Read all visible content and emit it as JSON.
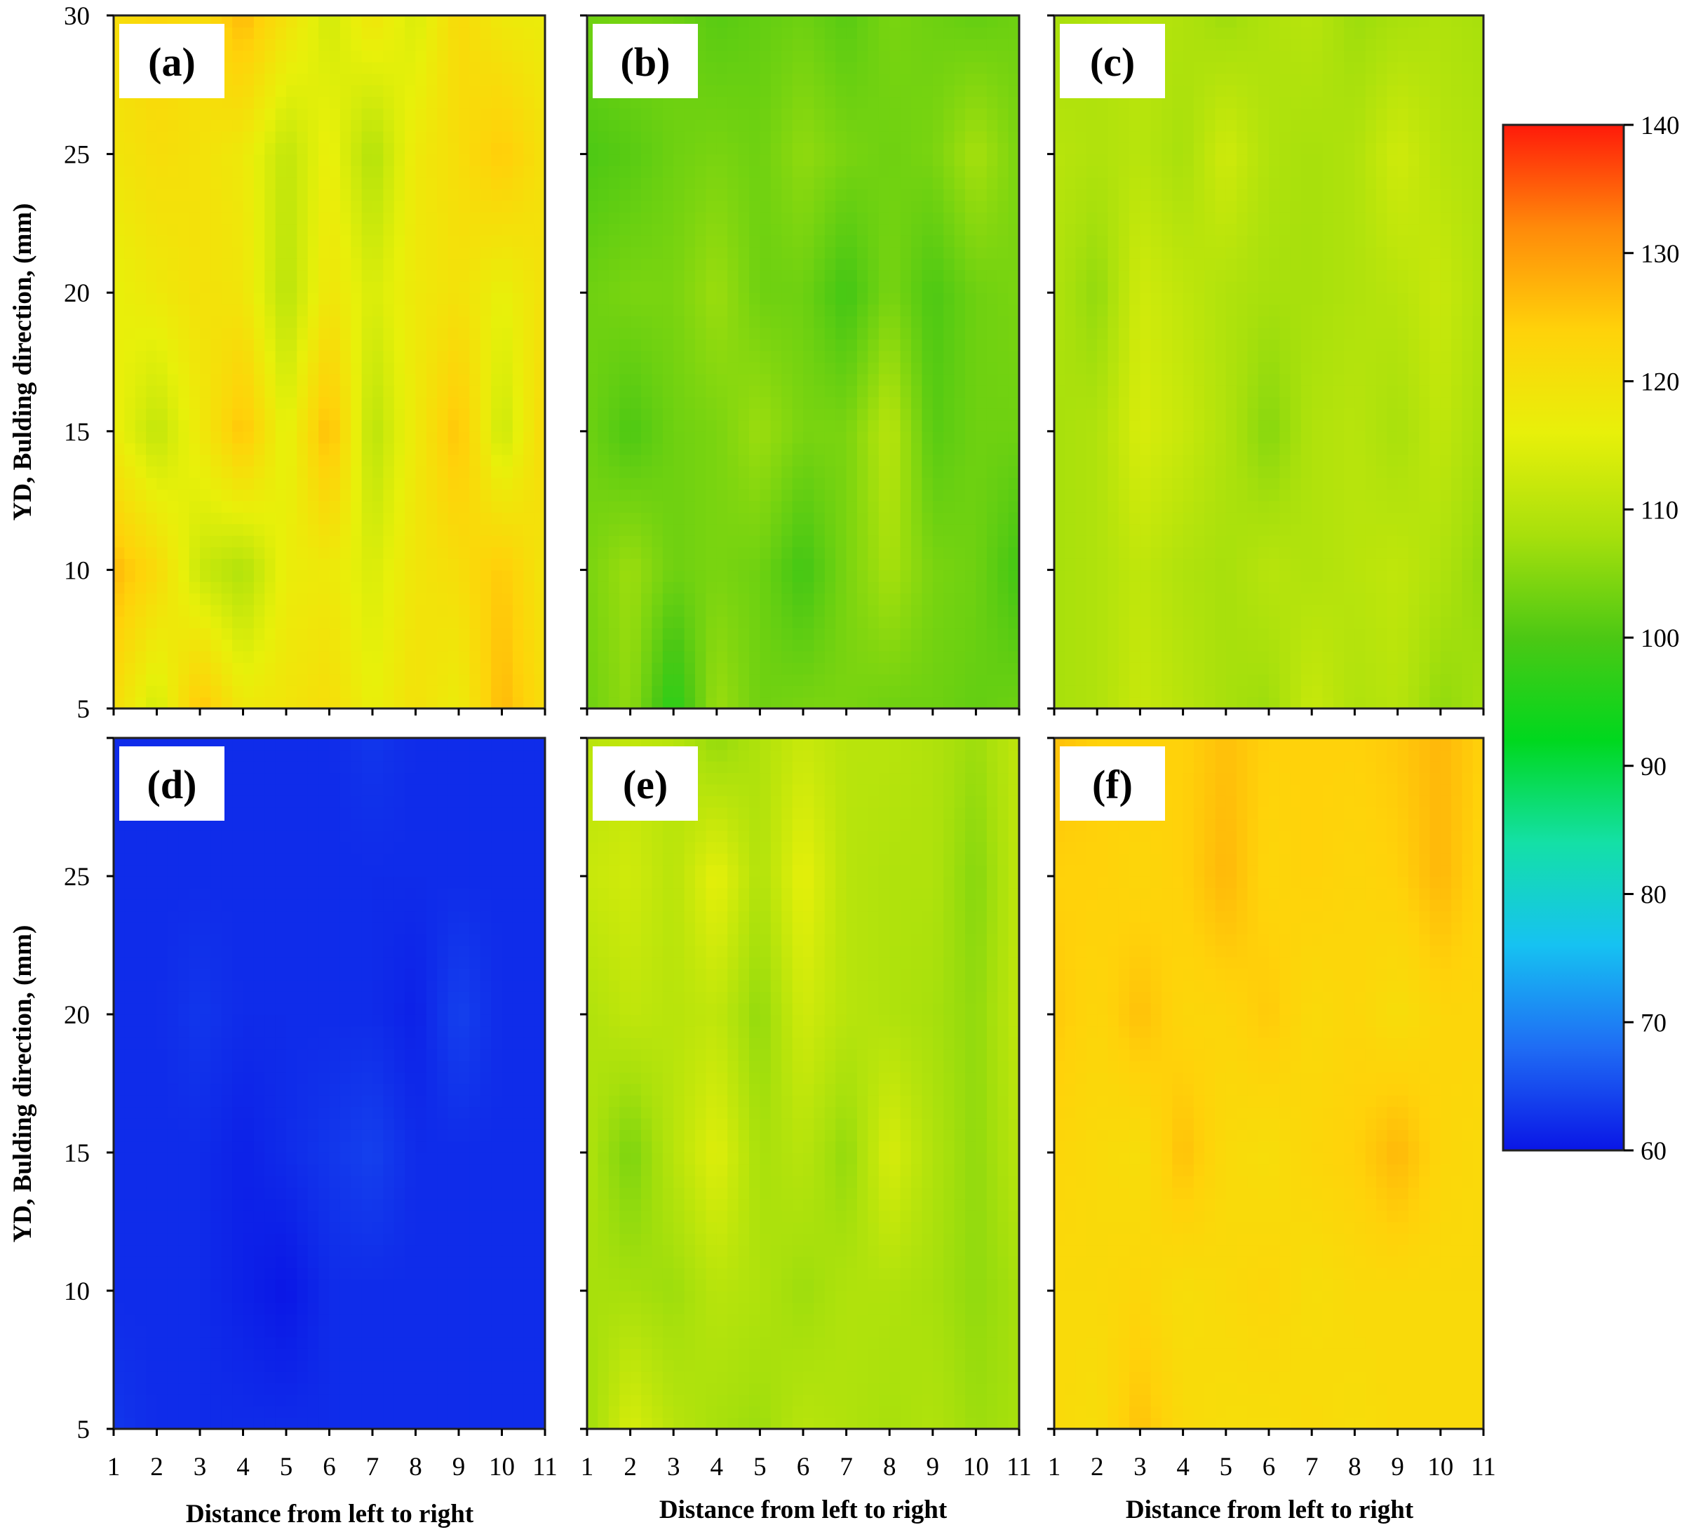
{
  "figure": {
    "y_axis_label": "YD, Bulding direction, (mm)",
    "x_axis_label": "Distance from left to right"
  },
  "chart_data": {
    "type": "heatmap",
    "x": [
      1,
      2,
      3,
      4,
      5,
      6,
      7,
      8,
      9,
      10,
      11
    ],
    "y": [
      5,
      10,
      15,
      20,
      25,
      30
    ],
    "x_ticks": [
      "1",
      "2",
      "3",
      "4",
      "5",
      "6",
      "7",
      "8",
      "9",
      "10",
      "11"
    ],
    "y_ticks_top_row": [
      "5",
      "10",
      "15",
      "20",
      "25",
      "30"
    ],
    "y_ticks_bottom_row": [
      "5",
      "10",
      "15",
      "20",
      "25"
    ],
    "xlabel": "Distance from left to right",
    "ylabel": "YD, Bulding direction, (mm)",
    "xlim": [
      1,
      11
    ],
    "ylim": [
      5,
      30
    ],
    "colorbar": {
      "min": 60,
      "max": 140,
      "ticks": [
        "60",
        "70",
        "80",
        "90",
        "100",
        "110",
        "120",
        "130",
        "140"
      ],
      "colors": [
        "#0a16e6",
        "#1f6cf4",
        "#16c2f2",
        "#14e0a6",
        "#00d81e",
        "#4cc814",
        "#a8e00c",
        "#e8f00a",
        "#ffd20a",
        "#ff8a0a",
        "#ff1a0a"
      ]
    },
    "panels": [
      {
        "label": "(a)",
        "values": [
          [
            121,
            113,
            126,
            118,
            119,
            121,
            116,
            120,
            117,
            127,
            121
          ],
          [
            127,
            122,
            112,
            109,
            117,
            118,
            114,
            119,
            121,
            125,
            119
          ],
          [
            117,
            111,
            118,
            126,
            115,
            127,
            110,
            118,
            126,
            112,
            122
          ],
          [
            116,
            118,
            120,
            119,
            110,
            119,
            114,
            118,
            120,
            116,
            120
          ],
          [
            119,
            121,
            120,
            118,
            111,
            117,
            109,
            118,
            121,
            125,
            120
          ],
          [
            121,
            123,
            121,
            127,
            120,
            113,
            119,
            114,
            122,
            118,
            117
          ]
        ]
      },
      {
        "label": "(b)",
        "values": [
          [
            103,
            106,
            96,
            107,
            103,
            104,
            104,
            103,
            103,
            102,
            103
          ],
          [
            104,
            107,
            103,
            104,
            103,
            99,
            104,
            108,
            104,
            103,
            99
          ],
          [
            103,
            100,
            103,
            104,
            107,
            104,
            104,
            110,
            101,
            103,
            103
          ],
          [
            103,
            104,
            104,
            107,
            103,
            103,
            99,
            104,
            100,
            103,
            104
          ],
          [
            100,
            101,
            103,
            104,
            103,
            106,
            104,
            103,
            104,
            108,
            104
          ],
          [
            103,
            104,
            103,
            101,
            102,
            103,
            101,
            104,
            103,
            102,
            103
          ]
        ]
      },
      {
        "label": "(c)",
        "values": [
          [
            108,
            109,
            112,
            110,
            108,
            107,
            112,
            109,
            110,
            106,
            108
          ],
          [
            108,
            109,
            111,
            109,
            108,
            110,
            109,
            110,
            111,
            109,
            106
          ],
          [
            108,
            109,
            114,
            112,
            109,
            105,
            109,
            110,
            108,
            111,
            108
          ],
          [
            109,
            106,
            113,
            111,
            109,
            108,
            108,
            109,
            110,
            112,
            109
          ],
          [
            110,
            109,
            110,
            108,
            113,
            109,
            108,
            109,
            113,
            110,
            109
          ],
          [
            108,
            109,
            110,
            109,
            107,
            109,
            110,
            107,
            108,
            109,
            108
          ]
        ]
      },
      {
        "label": "(d)",
        "values": [
          [
            63,
            62,
            62,
            62,
            62,
            62,
            62,
            62,
            62,
            62,
            62
          ],
          [
            62,
            62,
            62,
            61,
            60,
            62,
            62,
            62,
            62,
            62,
            62
          ],
          [
            62,
            62,
            62,
            61,
            62,
            63,
            64,
            62,
            62,
            62,
            62
          ],
          [
            62,
            62,
            63,
            62,
            62,
            62,
            62,
            61,
            64,
            62,
            62
          ],
          [
            62,
            62,
            62,
            62,
            62,
            62,
            62,
            62,
            62,
            62,
            62
          ],
          [
            62,
            62,
            62,
            62,
            62,
            62,
            63,
            62,
            62,
            62,
            62
          ]
        ]
      },
      {
        "label": "(e)",
        "values": [
          [
            107,
            114,
            110,
            108,
            107,
            110,
            109,
            108,
            109,
            107,
            108
          ],
          [
            108,
            108,
            107,
            110,
            109,
            107,
            109,
            109,
            108,
            106,
            108
          ],
          [
            109,
            104,
            110,
            115,
            108,
            110,
            106,
            114,
            109,
            106,
            110
          ],
          [
            109,
            111,
            110,
            111,
            106,
            113,
            110,
            109,
            108,
            106,
            111
          ],
          [
            112,
            113,
            110,
            116,
            109,
            116,
            110,
            109,
            109,
            105,
            111
          ],
          [
            110,
            111,
            110,
            106,
            109,
            112,
            110,
            110,
            109,
            107,
            111
          ]
        ]
      },
      {
        "label": "(f)",
        "values": [
          [
            122,
            121,
            126,
            122,
            121,
            121,
            122,
            121,
            122,
            122,
            122
          ],
          [
            122,
            122,
            123,
            121,
            122,
            123,
            121,
            122,
            122,
            122,
            122
          ],
          [
            123,
            122,
            121,
            126,
            122,
            121,
            123,
            124,
            127,
            123,
            122
          ],
          [
            125,
            123,
            126,
            123,
            123,
            125,
            122,
            123,
            121,
            123,
            123
          ],
          [
            124,
            124,
            123,
            124,
            127,
            123,
            124,
            123,
            124,
            127,
            123
          ],
          [
            126,
            124,
            124,
            124,
            126,
            124,
            124,
            124,
            125,
            127,
            124
          ]
        ]
      }
    ]
  }
}
